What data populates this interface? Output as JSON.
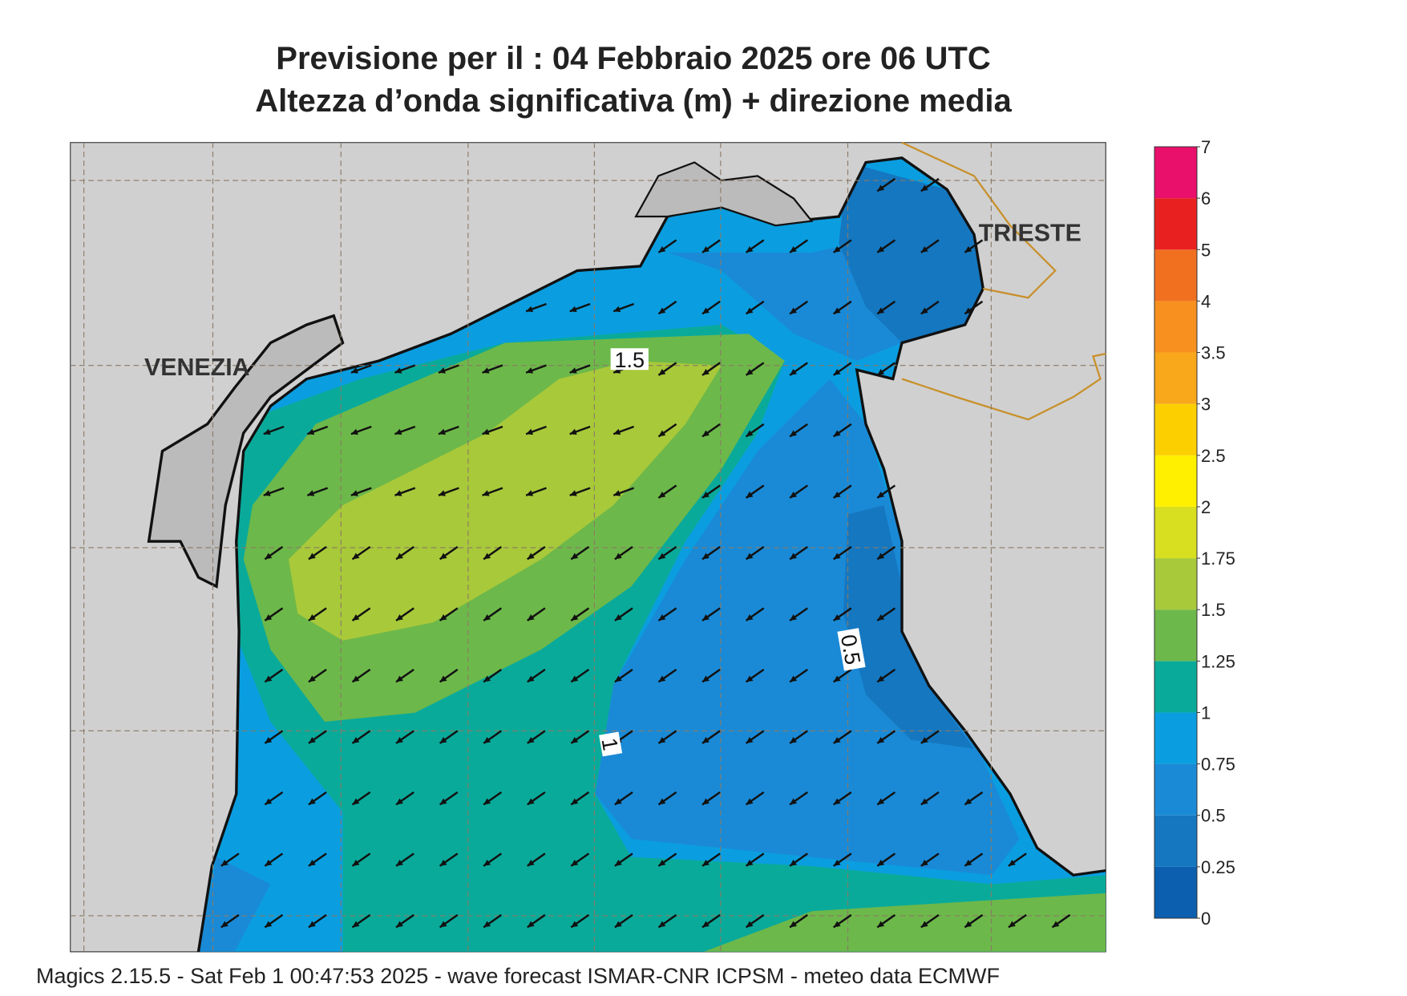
{
  "header": {
    "title": "Previsione per il  :  04  Febbraio 2025   ore 06 UTC",
    "subtitle": "Altezza d’onda significativa (m) + direzione media"
  },
  "map": {
    "cities": [
      "VENEZIA",
      "TRIESTE"
    ],
    "contour_labels": [
      "1.5",
      "0.5",
      "1"
    ]
  },
  "colorbar": {
    "ticks": [
      0,
      0.25,
      0.5,
      0.75,
      1,
      1.25,
      1.5,
      1.75,
      2,
      2.5,
      3,
      3.5,
      4,
      5,
      6,
      7
    ],
    "colors": [
      "#0b5fae",
      "#1577c0",
      "#1a8ad6",
      "#0a9ee0",
      "#0aaa9a",
      "#6db84a",
      "#a8c93a",
      "#d8df20",
      "#fff000",
      "#fcd000",
      "#f8a81a",
      "#f7901e",
      "#f07020",
      "#e82020",
      "#e8106a"
    ]
  },
  "footer": "Magics 2.15.5 - Sat Feb  1 00:47:53 2025 - wave forecast  ISMAR-CNR  ICPSM - meteo data    ECMWF"
}
